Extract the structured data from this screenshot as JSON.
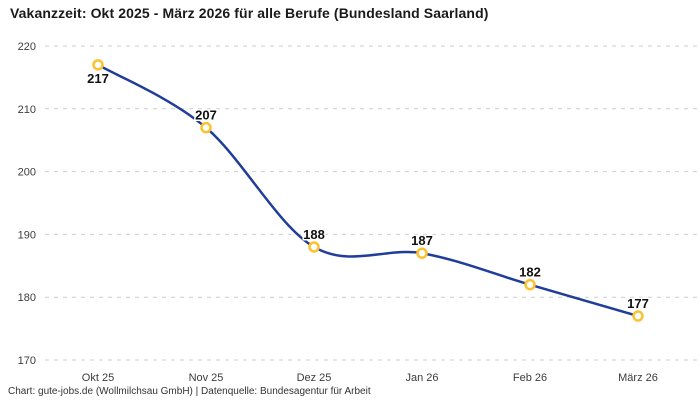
{
  "title": "Vakanzzeit: Okt 2025 - März 2026 für alle Berufe (Bundesland Saarland)",
  "footer": "Chart: gute-jobs.de (Wollmilchsau GmbH) | Datenquelle: Bundesagentur für Arbeit",
  "chart_data": {
    "type": "line",
    "title": "Vakanzzeit: Okt 2025 - März 2026 für alle Berufe (Bundesland Saarland)",
    "categories": [
      "Okt 25",
      "Nov 25",
      "Dez 25",
      "Jan 26",
      "Feb 26",
      "März 26"
    ],
    "values": [
      217,
      207,
      188,
      187,
      182,
      177
    ],
    "xlabel": "",
    "ylabel": "",
    "ylim": [
      170,
      220
    ],
    "yticks": [
      220,
      210,
      200,
      190,
      180,
      170
    ],
    "grid": "horizontal-dashed",
    "legend": "none",
    "smooth": true,
    "colors": {
      "line": "#1f3d99",
      "marker_ring": "#fcc22e",
      "marker_fill": "#ffffff",
      "gridline": "#cdcdcd",
      "tick_text": "#3c3c3c",
      "value_label": "#111111"
    },
    "source_note": "Chart: gute-jobs.de (Wollmilchsau GmbH) | Datenquelle: Bundesagentur für Arbeit"
  }
}
